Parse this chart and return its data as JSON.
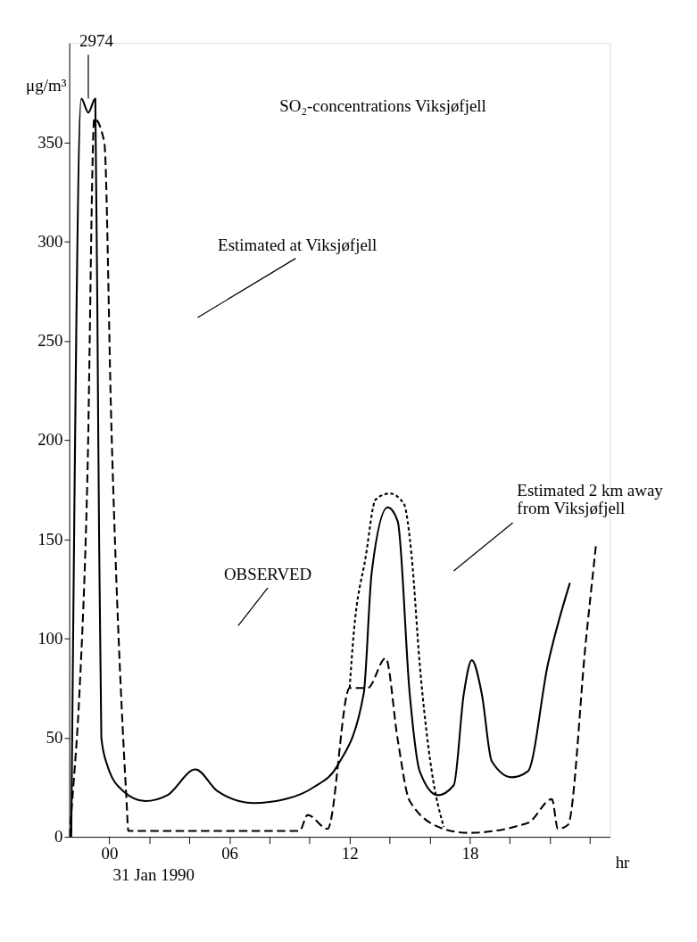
{
  "chart_data": {
    "type": "line",
    "title": "SO₂-concentrations  Viksjøfjell",
    "xlabel": "hr",
    "ylabel": "μg/m³",
    "xlim": [
      -2,
      25
    ],
    "ylim": [
      0,
      400
    ],
    "xticks": [
      {
        "value": 0,
        "label": "00"
      },
      {
        "value": 2,
        "label": null
      },
      {
        "value": 4,
        "label": null
      },
      {
        "value": 6,
        "label": "06"
      },
      {
        "value": 8,
        "label": null
      },
      {
        "value": 10,
        "label": null
      },
      {
        "value": 12,
        "label": "12"
      },
      {
        "value": 14,
        "label": null
      },
      {
        "value": 16,
        "label": null
      },
      {
        "value": 18,
        "label": "18"
      },
      {
        "value": 20,
        "label": null
      },
      {
        "value": 22,
        "label": null
      },
      {
        "value": 24,
        "label": null
      }
    ],
    "yticks": [
      0,
      50,
      100,
      150,
      200,
      250,
      300,
      350
    ],
    "grid": false,
    "marker": "none",
    "series": [
      {
        "color": "#000000",
        "line_style": "solid",
        "x": [
          -1.9,
          -1.4,
          -1.05,
          -0.7,
          -0.55,
          -0.4,
          -0.1,
          0.7,
          1.8,
          2.9,
          4.3,
          5.4,
          7.2,
          8.8,
          10.2,
          11.4,
          12.7,
          13.1,
          13.9,
          14.4,
          15.0,
          15.5,
          16.4,
          17.2,
          17.7,
          18.1,
          18.6,
          19.1,
          20.1,
          20.9,
          21.9,
          23.0
        ],
        "values": [
          0,
          372,
          365,
          372,
          200,
          50,
          36,
          23,
          18,
          21,
          34,
          23,
          17,
          19,
          25,
          36,
          72,
          133,
          166,
          159,
          72,
          33,
          21,
          26,
          72,
          89,
          72,
          38,
          30,
          33,
          87,
          128
        ]
      },
      {
        "color": "#000000",
        "line_style": "dashed",
        "x": [
          -2.0,
          -1.8,
          -1.5,
          -1.1,
          -0.75,
          -0.25,
          0.1,
          0.85,
          0.95,
          5.0,
          9.5,
          9.9,
          10.9,
          12.0,
          12.9,
          13.8,
          14.4,
          15.0,
          16.7,
          17.9,
          20.9,
          22.1,
          22.4,
          22.9,
          23.8,
          24.3
        ],
        "values": [
          0,
          25,
          71,
          179,
          362,
          350,
          208,
          20,
          3,
          3,
          3,
          11,
          4,
          75,
          75,
          90,
          49,
          18,
          4,
          2,
          7,
          19,
          4,
          6,
          99,
          147
        ]
      },
      {
        "color": "#000000",
        "line_style": "dotted",
        "x": [
          12.0,
          12.2,
          12.8,
          13.3,
          14.0,
          14.7,
          15.1,
          15.5,
          16.1,
          16.7
        ],
        "values": [
          75,
          102,
          141,
          170,
          173,
          168,
          141,
          87,
          33,
          5
        ]
      }
    ],
    "annotations": [
      {
        "text": "2974",
        "x": -1.05,
        "y": 372
      },
      "Estimated  at Viksjøfjell",
      "OBSERVED",
      "Estimated 2 km away from Viksjøfjell",
      "31 Jan 1990"
    ]
  }
}
